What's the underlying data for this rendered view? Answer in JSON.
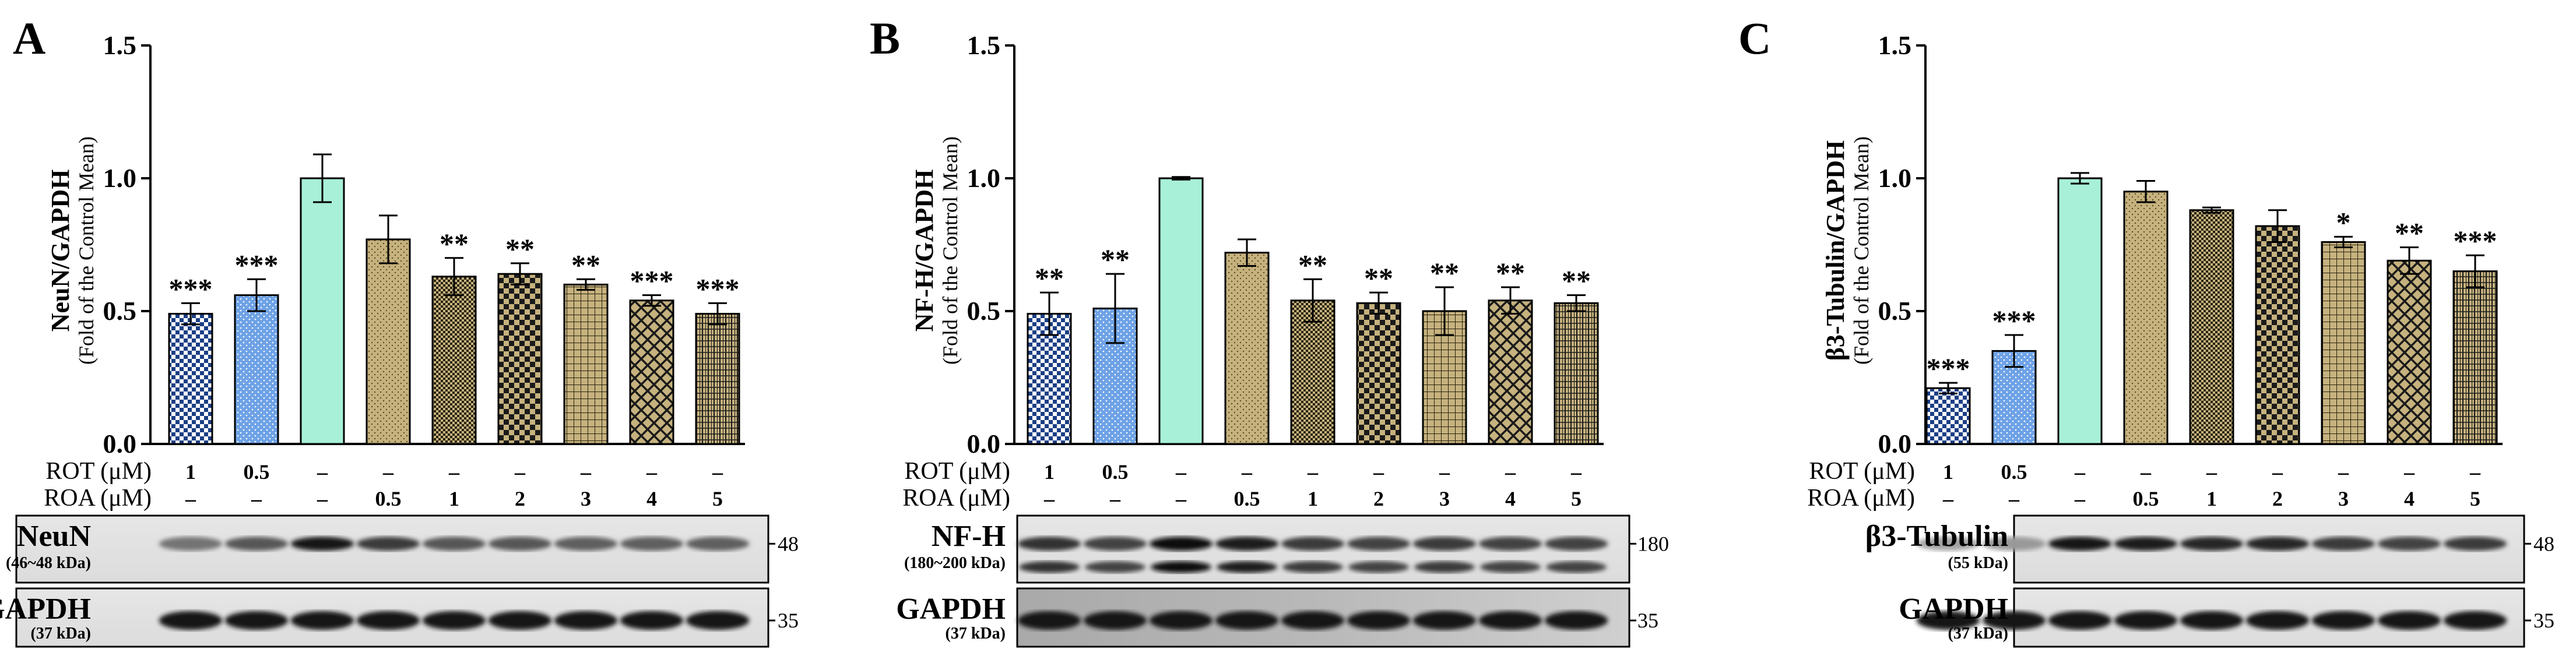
{
  "chart_data": [
    {
      "type": "bar",
      "panel": "A",
      "ylabel": "NeuN/GAPDH",
      "ylabel_sub": "(Fold of the Control Mean)",
      "ylim": [
        0,
        1.5
      ],
      "yticks": [
        "0.0",
        "0.5",
        "1.0",
        "1.5"
      ],
      "values": [
        0.49,
        0.56,
        1.0,
        0.77,
        0.63,
        0.64,
        0.6,
        0.54,
        0.49
      ],
      "errors": [
        0.04,
        0.06,
        0.09,
        0.09,
        0.07,
        0.04,
        0.02,
        0.02,
        0.04
      ],
      "significance": [
        "***",
        "***",
        "",
        "",
        "**",
        "**",
        "**",
        "***",
        "***"
      ],
      "conditions": {
        "rot_label": "ROT (μM)",
        "roa_label": "ROA (μM)",
        "rot": [
          "1",
          "0.5",
          "–",
          "–",
          "–",
          "–",
          "–",
          "–",
          "–"
        ],
        "roa": [
          "–",
          "–",
          "–",
          "0.5",
          "1",
          "2",
          "3",
          "4",
          "5"
        ]
      },
      "blots": [
        {
          "name": "NeuN",
          "kda": "(46~48 kDa)",
          "mw": "48"
        },
        {
          "name": "GAPDH",
          "kda": "(37 kDa)",
          "mw": "35"
        }
      ]
    },
    {
      "type": "bar",
      "panel": "B",
      "ylabel": "NF-H/GAPDH",
      "ylabel_sub": "(Fold of the Control Mean)",
      "ylim": [
        0,
        1.5
      ],
      "yticks": [
        "0.0",
        "0.5",
        "1.0",
        "1.5"
      ],
      "values": [
        0.49,
        0.51,
        1.0,
        0.72,
        0.54,
        0.53,
        0.5,
        0.54,
        0.53
      ],
      "errors": [
        0.08,
        0.13,
        0.005,
        0.05,
        0.08,
        0.04,
        0.09,
        0.05,
        0.03
      ],
      "significance": [
        "**",
        "**",
        "",
        "",
        "**",
        "**",
        "**",
        "**",
        "**"
      ],
      "conditions": {
        "rot_label": "ROT (μM)",
        "roa_label": "ROA (μM)",
        "rot": [
          "1",
          "0.5",
          "–",
          "–",
          "–",
          "–",
          "–",
          "–",
          "–"
        ],
        "roa": [
          "–",
          "–",
          "–",
          "0.5",
          "1",
          "2",
          "3",
          "4",
          "5"
        ]
      },
      "blots": [
        {
          "name": "NF-H",
          "kda": "(180~200 kDa)",
          "mw": "180"
        },
        {
          "name": "GAPDH",
          "kda": "(37 kDa)",
          "mw": "35"
        }
      ]
    },
    {
      "type": "bar",
      "panel": "C",
      "ylabel": "β3-Tubulin/GAPDH",
      "ylabel_sub": "(Fold of the Control Mean)",
      "ylim": [
        0,
        1.5
      ],
      "yticks": [
        "0.0",
        "0.5",
        "1.0",
        "1.5"
      ],
      "values": [
        0.21,
        0.35,
        1.0,
        0.95,
        0.88,
        0.82,
        0.76,
        0.69,
        0.65
      ],
      "errors": [
        0.02,
        0.06,
        0.02,
        0.04,
        0.01,
        0.06,
        0.02,
        0.05,
        0.06
      ],
      "significance": [
        "***",
        "***",
        "",
        "",
        "",
        "",
        "*",
        "**",
        "***"
      ],
      "conditions": {
        "rot_label": "ROT (μM)",
        "roa_label": "ROA (μM)",
        "rot": [
          "1",
          "0.5",
          "–",
          "–",
          "–",
          "–",
          "–",
          "–",
          "–"
        ],
        "roa": [
          "–",
          "–",
          "–",
          "0.5",
          "1",
          "2",
          "3",
          "4",
          "5"
        ]
      },
      "blots": [
        {
          "name": "β3-Tubulin",
          "kda": "(55 kDa)",
          "mw": "48"
        },
        {
          "name": "GAPDH",
          "kda": "(37 kDa)",
          "mw": "35"
        }
      ]
    }
  ],
  "colors": {
    "rot": "#4a78c8",
    "rot_light": "#6ea2e6",
    "control": "#a8f0d8",
    "roa": "#c6b27e",
    "axis": "#000000"
  }
}
